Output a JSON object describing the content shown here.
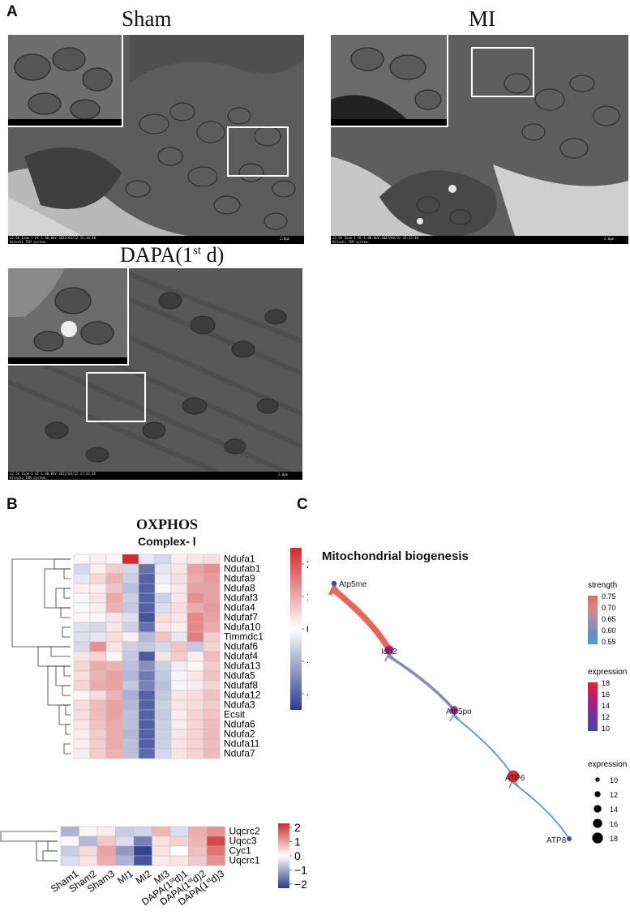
{
  "panelA": {
    "label": "A",
    "sham_title": "Sham",
    "mi_title": "MI",
    "dapa_title_main": "DAPA(1",
    "dapa_title_sup": "st",
    "dapa_title_end": " d)",
    "sham_caption": "x2.5k Zoom-1 HC-1 80.0kV 2022/03/22 15:10:48\nHitachi TEM system.",
    "mi_caption": "x2.5k Zoom-1 HC-1 80.0kV 2022/03/22 15:15:18\nHitachi TEM system.",
    "dapa_caption": "x2.5k Zoom-1 HC-1 80.0kV 2022/03/22 17:33:34\nHitachi TEM system.",
    "scale_text": "2.0μm"
  },
  "panelB": {
    "label": "B",
    "title": "OXPHOS",
    "subtitle": "Complex- Ⅰ"
  },
  "panelC": {
    "label": "C",
    "title": "Mitochondrial biogenesis",
    "legend_strength_title": "strength",
    "legend_expression_title": "expression",
    "legend_size_title": "expression"
  },
  "chart_data": [
    {
      "type": "heatmap",
      "title": "OXPHOS",
      "subtitle": "Complex- Ⅰ",
      "columns": [
        "Sham1",
        "Sham2",
        "Sham3",
        "MI1",
        "MI2",
        "MI3",
        "DAPA(1stđ)1",
        "DAPA(1stđ)2",
        "DAPA(1stđ)3"
      ],
      "column_display": [
        {
          "base": "Sham1"
        },
        {
          "base": "Sham2"
        },
        {
          "base": "Sham3"
        },
        {
          "base": "MI1"
        },
        {
          "base": "MI2"
        },
        {
          "base": "MI3"
        },
        {
          "base": "DAPA(1",
          "sup": "st",
          "tail": "d)1"
        },
        {
          "base": "DAPA(1",
          "sup": "st",
          "tail": "d)2"
        },
        {
          "base": "DAPA(1",
          "sup": "st",
          "tail": "d)3"
        }
      ],
      "rows": [
        "Ndufa1",
        "Ndufab1",
        "Ndufa9",
        "Ndufa8",
        "Ndufaf3",
        "Ndufa4",
        "Ndufaf7",
        "Ndufa10",
        "Timmdc1",
        "Ndufaf6",
        "Ndufaf4",
        "Ndufa13",
        "Ndufa5",
        "Ndufaf8",
        "Ndufa12",
        "Ndufa3",
        "Ecsit",
        "Ndufa6",
        "Ndufa2",
        "Ndufa11",
        "Ndufa7"
      ],
      "values": [
        [
          0.1,
          0.2,
          0.1,
          2.5,
          -0.3,
          -0.5,
          0.2,
          0.3,
          0.4
        ],
        [
          -0.5,
          0.2,
          0.6,
          -0.5,
          -1.8,
          -0.3,
          0.3,
          1.1,
          1.3
        ],
        [
          -0.3,
          0.5,
          0.9,
          -0.6,
          -2.0,
          -0.2,
          0.4,
          1.0,
          1.2
        ],
        [
          0.2,
          0.2,
          0.7,
          -0.8,
          -2.0,
          0.1,
          0.3,
          1.1,
          1.1
        ],
        [
          -0.1,
          0.3,
          1.0,
          -0.6,
          -2.0,
          -0.6,
          0.3,
          1.3,
          1.1
        ],
        [
          -0.1,
          0.2,
          0.9,
          -0.7,
          -2.0,
          -0.4,
          0.4,
          1.0,
          1.2
        ],
        [
          0.1,
          0.1,
          0.3,
          -0.4,
          -2.2,
          0.4,
          0.3,
          1.4,
          1.1
        ],
        [
          -0.4,
          -0.5,
          0.3,
          -0.6,
          -1.8,
          0.3,
          0.2,
          1.4,
          1.0
        ],
        [
          -0.4,
          -0.3,
          0.4,
          0.2,
          -0.9,
          0.7,
          -0.3,
          1.5,
          0.6
        ],
        [
          -0.5,
          1.3,
          0.3,
          -0.6,
          -0.7,
          -0.5,
          0.7,
          -0.7,
          0.5
        ],
        [
          0.3,
          0.5,
          0.1,
          -0.7,
          -2.1,
          0.3,
          0.6,
          0.2,
          0.8
        ],
        [
          0.5,
          1.0,
          0.9,
          -0.8,
          -1.4,
          -0.6,
          -0.2,
          0.1,
          0.6
        ],
        [
          0.4,
          0.9,
          1.1,
          -0.9,
          -1.7,
          -0.7,
          -0.1,
          0.3,
          0.7
        ],
        [
          0.5,
          1.0,
          1.1,
          -0.7,
          -1.6,
          -0.8,
          -0.1,
          0.2,
          0.5
        ],
        [
          0.1,
          0.4,
          0.9,
          -1.0,
          -2.0,
          -0.7,
          0.3,
          0.4,
          0.7
        ],
        [
          0.4,
          0.8,
          1.1,
          -0.9,
          -2.0,
          -0.6,
          0.3,
          0.4,
          0.6
        ],
        [
          0.4,
          0.8,
          1.1,
          -0.8,
          -2.0,
          -0.7,
          0.2,
          0.5,
          0.7
        ],
        [
          0.3,
          0.7,
          1.0,
          -0.8,
          -2.0,
          -0.6,
          0.2,
          0.5,
          0.8
        ],
        [
          0.2,
          0.6,
          1.0,
          -0.9,
          -2.0,
          -0.6,
          0.3,
          0.5,
          0.8
        ],
        [
          0.2,
          0.6,
          1.0,
          -0.8,
          -2.0,
          -0.6,
          0.3,
          0.5,
          0.8
        ],
        [
          0.2,
          0.6,
          0.9,
          -0.8,
          -1.9,
          -0.5,
          0.3,
          0.5,
          0.8
        ]
      ],
      "colorbar": {
        "min": -2.5,
        "max": 2.5,
        "ticks": [
          2,
          1,
          0,
          -1,
          -2
        ],
        "tick_labels": [
          "2",
          "1",
          "0",
          "-1",
          "-2"
        ],
        "low_color": "#2b3a8f",
        "mid_color": "#ffffff",
        "high_color": "#d02a2a"
      }
    },
    {
      "type": "heatmap",
      "columns": [
        "Sham1",
        "Sham2",
        "Sham3",
        "MI1",
        "MI2",
        "MI3",
        "DAPA(1stđ)1",
        "DAPA(1stđ)2",
        "DAPA(1stđ)3"
      ],
      "rows": [
        "Uqcrc2",
        "Uqcc3",
        "Cyc1",
        "Uqcrc1"
      ],
      "values": [
        [
          -0.9,
          0.1,
          0.2,
          -0.6,
          -0.5,
          0.8,
          -0.4,
          0.9,
          1.2
        ],
        [
          0.1,
          -0.8,
          0.6,
          -0.4,
          -1.5,
          0.3,
          0.5,
          0.8,
          2.0
        ],
        [
          -0.6,
          0.4,
          1.0,
          -1.2,
          -2.2,
          0.3,
          0.0,
          0.7,
          1.5
        ],
        [
          -0.4,
          0.3,
          0.9,
          -0.9,
          -2.0,
          0.2,
          0.3,
          0.6,
          1.2
        ]
      ],
      "colorbar": {
        "min": -2.3,
        "max": 2.3,
        "ticks": [
          2,
          1,
          0,
          -1,
          -2
        ],
        "tick_labels": [
          "2",
          "1",
          "0",
          "−1",
          "−2"
        ],
        "low_color": "#2b3a8f",
        "mid_color": "#ffffff",
        "high_color": "#d02a2a"
      }
    },
    {
      "type": "network",
      "title": "Mitochondrial biogenesis",
      "nodes": [
        {
          "id": "Atp5me",
          "expression": 10.5
        },
        {
          "id": "Idh2",
          "expression": 14.5
        },
        {
          "id": "Atp5po",
          "expression": 13.5
        },
        {
          "id": "ATP6",
          "expression": 18
        },
        {
          "id": "ATP8",
          "expression": 10
        }
      ],
      "edges": [
        {
          "from": "ATP8",
          "to": "ATP6",
          "strength": 0.56
        },
        {
          "from": "ATP6",
          "to": "Atp5po",
          "strength": 0.56
        },
        {
          "from": "Atp5po",
          "to": "Idh2",
          "strength": 0.62
        },
        {
          "from": "Idh2",
          "to": "Atp5me",
          "strength": 0.75
        }
      ],
      "strength_legend": {
        "ticks": [
          0.75,
          0.7,
          0.65,
          0.6,
          0.55
        ],
        "tick_labels": [
          "0.75",
          "0.70",
          "0.65",
          "0.60",
          "0.55"
        ],
        "colors": [
          "#e8665a",
          "#d9867a",
          "#a88bb0",
          "#6f8bc4",
          "#4f9bd3"
        ]
      },
      "expression_legend": {
        "ticks": [
          18,
          16,
          14,
          12,
          10
        ],
        "tick_labels": [
          "18",
          "16",
          "14",
          "12",
          "10"
        ],
        "colors": [
          "#e0262a",
          "#c81a6a",
          "#9a248f",
          "#6a36a0",
          "#3a4ca5"
        ]
      },
      "size_legend": {
        "values": [
          10,
          12,
          14,
          16,
          18
        ],
        "labels": [
          "10",
          "12",
          "14",
          "16",
          "18"
        ]
      }
    }
  ]
}
